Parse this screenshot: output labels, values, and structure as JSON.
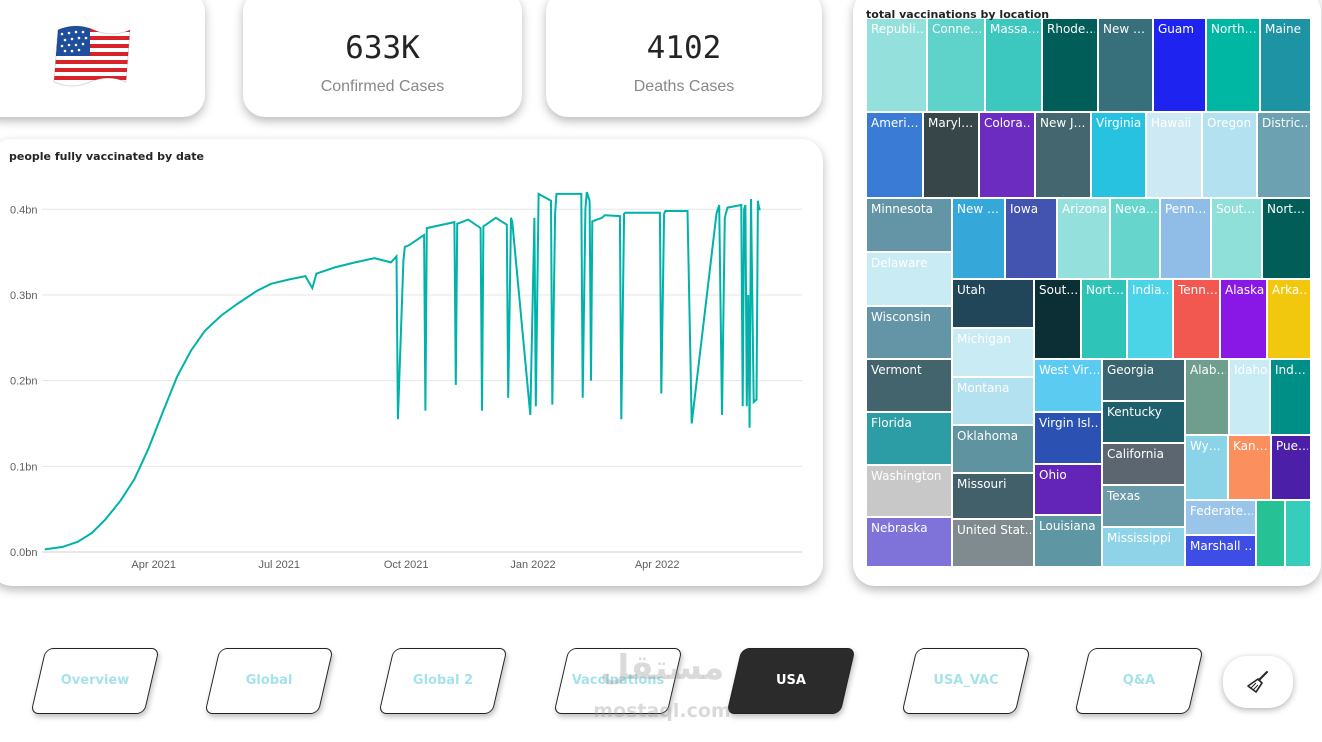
{
  "kpis": {
    "confirmed": {
      "value": "633K",
      "label": "Confirmed Cases"
    },
    "deaths": {
      "value": "4102",
      "label": "Deaths Cases"
    }
  },
  "flag": {
    "icon": "us-flag-icon"
  },
  "chart_data": [
    {
      "type": "line",
      "title": "people fully vaccinated by date",
      "xlabel": "",
      "ylabel": "",
      "ylim": [
        0,
        0.44
      ],
      "xlim": [
        "2021-01-10",
        "2022-07-15"
      ],
      "y_ticks": [
        0,
        0.1,
        0.2,
        0.3,
        0.4
      ],
      "y_tick_labels": [
        "0.0bn",
        "0.1bn",
        "0.2bn",
        "0.3bn",
        "0.4bn"
      ],
      "x_ticks": [
        "2021-04-01",
        "2021-07-01",
        "2021-10-01",
        "2022-01-01",
        "2022-04-01"
      ],
      "x_tick_labels": [
        "Apr 2021",
        "Jul 2021",
        "Oct 2021",
        "Jan 2022",
        "Apr 2022"
      ],
      "grid": true,
      "color": "#00b2a9",
      "series": [
        {
          "name": "people fully vaccinated",
          "x": [
            "2021-01-12",
            "2021-01-25",
            "2021-02-05",
            "2021-02-15",
            "2021-02-25",
            "2021-03-08",
            "2021-03-18",
            "2021-03-28",
            "2021-04-08",
            "2021-04-18",
            "2021-04-28",
            "2021-05-08",
            "2021-05-20",
            "2021-06-01",
            "2021-06-15",
            "2021-06-25",
            "2021-07-08",
            "2021-07-20",
            "2021-07-25",
            "2021-07-28",
            "2021-07-30",
            "2021-08-10",
            "2021-08-25",
            "2021-09-08",
            "2021-09-20",
            "2021-09-24",
            "2021-09-25",
            "2021-09-29",
            "2021-09-30",
            "2021-10-03",
            "2021-10-14",
            "2021-10-15",
            "2021-10-16",
            "2021-11-05",
            "2021-11-06",
            "2021-11-07",
            "2021-11-15",
            "2021-11-24",
            "2021-11-25",
            "2021-11-26",
            "2021-12-05",
            "2021-12-13",
            "2021-12-14",
            "2021-12-16",
            "2021-12-17",
            "2021-12-30",
            "2022-01-02",
            "2022-01-03",
            "2022-01-05",
            "2022-01-14",
            "2022-01-15",
            "2022-01-17",
            "2022-01-18",
            "2022-02-05",
            "2022-02-06",
            "2022-02-08",
            "2022-02-09",
            "2022-02-11",
            "2022-02-12",
            "2022-02-13",
            "2022-02-20",
            "2022-02-22",
            "2022-03-05",
            "2022-03-06",
            "2022-03-08",
            "2022-03-09",
            "2022-04-03",
            "2022-04-04",
            "2022-04-06",
            "2022-04-07",
            "2022-04-23",
            "2022-04-26",
            "2022-05-14",
            "2022-05-16",
            "2022-05-18",
            "2022-05-20",
            "2022-05-22",
            "2022-06-01",
            "2022-06-02",
            "2022-06-03",
            "2022-06-04",
            "2022-06-05",
            "2022-06-06",
            "2022-06-07",
            "2022-06-08",
            "2022-06-10",
            "2022-06-12",
            "2022-06-13",
            "2022-06-14",
            "2022-06-15"
          ],
          "values": [
            0.003,
            0.006,
            0.012,
            0.022,
            0.038,
            0.06,
            0.085,
            0.12,
            0.165,
            0.205,
            0.235,
            0.258,
            0.276,
            0.29,
            0.305,
            0.313,
            0.318,
            0.322,
            0.308,
            0.325,
            0.326,
            0.332,
            0.338,
            0.343,
            0.338,
            0.345,
            0.155,
            0.34,
            0.356,
            0.358,
            0.37,
            0.165,
            0.378,
            0.385,
            0.195,
            0.383,
            0.388,
            0.378,
            0.165,
            0.38,
            0.39,
            0.382,
            0.18,
            0.39,
            0.385,
            0.16,
            0.39,
            0.17,
            0.418,
            0.41,
            0.172,
            0.395,
            0.418,
            0.418,
            0.18,
            0.4,
            0.42,
            0.41,
            0.2,
            0.386,
            0.39,
            0.393,
            0.392,
            0.155,
            0.395,
            0.396,
            0.396,
            0.185,
            0.395,
            0.398,
            0.398,
            0.15,
            0.395,
            0.405,
            0.16,
            0.39,
            0.402,
            0.405,
            0.17,
            0.4,
            0.405,
            0.17,
            0.3,
            0.145,
            0.412,
            0.175,
            0.178,
            0.41,
            0.4,
            0.4
          ]
        }
      ]
    },
    {
      "type": "treemap",
      "title": "total vaccinations by location",
      "items": [
        {
          "name": "Republi…",
          "color": "#94e0dc"
        },
        {
          "name": "Conne…",
          "color": "#5fd3c9"
        },
        {
          "name": "Massa…",
          "color": "#3cc7bf"
        },
        {
          "name": "Rhode…",
          "color": "#005d58"
        },
        {
          "name": "New …",
          "color": "#37707a"
        },
        {
          "name": "Guam",
          "color": "#1e23f0"
        },
        {
          "name": "North…",
          "color": "#00b7a3"
        },
        {
          "name": "Maine",
          "color": "#1e93a3"
        },
        {
          "name": "Ameri…",
          "color": "#3a7bd5"
        },
        {
          "name": "Maryl…",
          "color": "#374649"
        },
        {
          "name": "Colora…",
          "color": "#6b2cbf"
        },
        {
          "name": "New J…",
          "color": "#44676f"
        },
        {
          "name": "Virginia",
          "color": "#27c2e0"
        },
        {
          "name": "Hawaii",
          "color": "#cdeaf4"
        },
        {
          "name": "Oregon",
          "color": "#b3e1f0"
        },
        {
          "name": "Distric…",
          "color": "#6ba1b1"
        },
        {
          "name": "Minnesota",
          "color": "#6495a6"
        },
        {
          "name": "Delaware",
          "color": "#c9ebf4"
        },
        {
          "name": "New …",
          "color": "#35a7d9"
        },
        {
          "name": "Iowa",
          "color": "#4353b0"
        },
        {
          "name": "Arizona",
          "color": "#94e0dc"
        },
        {
          "name": "Neva…",
          "color": "#66d6cd"
        },
        {
          "name": "Penn…",
          "color": "#8fbde8"
        },
        {
          "name": "Sout…",
          "color": "#8ee0d8"
        },
        {
          "name": "Nort…",
          "color": "#005d58"
        },
        {
          "name": "Wisconsin",
          "color": "#6495a6"
        },
        {
          "name": "Utah",
          "color": "#214559"
        },
        {
          "name": "Michigan",
          "color": "#c9ebf4"
        },
        {
          "name": "Sout…",
          "color": "#0b2f35"
        },
        {
          "name": "Nort…",
          "color": "#2fc4b8"
        },
        {
          "name": "India…",
          "color": "#4bd4e8"
        },
        {
          "name": "Tenn…",
          "color": "#f2584f"
        },
        {
          "name": "Alaska",
          "color": "#8918e6"
        },
        {
          "name": "Arka…",
          "color": "#f2c80f"
        },
        {
          "name": "Vermont",
          "color": "#44646d"
        },
        {
          "name": "Montana",
          "color": "#b3e1f0"
        },
        {
          "name": "West Vir…",
          "color": "#5ccbf2"
        },
        {
          "name": "Georgia",
          "color": "#3a6470"
        },
        {
          "name": "Alab…",
          "color": "#6f9d8e"
        },
        {
          "name": "Idaho",
          "color": "#c9ebf4"
        },
        {
          "name": "Ind…",
          "color": "#008f86"
        },
        {
          "name": "Florida",
          "color": "#2d9da5"
        },
        {
          "name": "Oklahoma",
          "color": "#5f93a0"
        },
        {
          "name": "Virgin Isl…",
          "color": "#2b52b3"
        },
        {
          "name": "Kentucky",
          "color": "#1f5e6b"
        },
        {
          "name": "California",
          "color": "#5b6670"
        },
        {
          "name": "Wy…",
          "color": "#8bd4e8"
        },
        {
          "name": "Kan…",
          "color": "#fb8f5e"
        },
        {
          "name": "Pue…",
          "color": "#4c1fa8"
        },
        {
          "name": "Washington",
          "color": "#c8c8c8"
        },
        {
          "name": "Missouri",
          "color": "#42606a"
        },
        {
          "name": "Ohio",
          "color": "#6325b8"
        },
        {
          "name": "Texas",
          "color": "#6b9aa8"
        },
        {
          "name": "Federate…",
          "color": "#9ac5e8"
        },
        {
          "name": "Nebraska",
          "color": "#7f73d9"
        },
        {
          "name": "United Stat…",
          "color": "#808b8f"
        },
        {
          "name": "Louisiana",
          "color": "#5e97a3"
        },
        {
          "name": "Mississippi",
          "color": "#8fd3e8"
        },
        {
          "name": "Marshall …",
          "color": "#3d4de6"
        },
        {
          "name": "",
          "color": "#26c296"
        },
        {
          "name": "",
          "color": "#37cdbd"
        }
      ]
    }
  ],
  "nav": {
    "items": [
      {
        "label": "Overview",
        "active": false
      },
      {
        "label": "Global",
        "active": false
      },
      {
        "label": "Global 2",
        "active": false
      },
      {
        "label": "Vaccinations",
        "active": false
      },
      {
        "label": "USA",
        "active": true
      },
      {
        "label": "USA_VAC",
        "active": false
      },
      {
        "label": "Q&A",
        "active": false
      }
    ],
    "clear_icon": "broom-icon"
  },
  "watermark": {
    "arabic": "مستقل",
    "latin": "mostaql.com"
  }
}
